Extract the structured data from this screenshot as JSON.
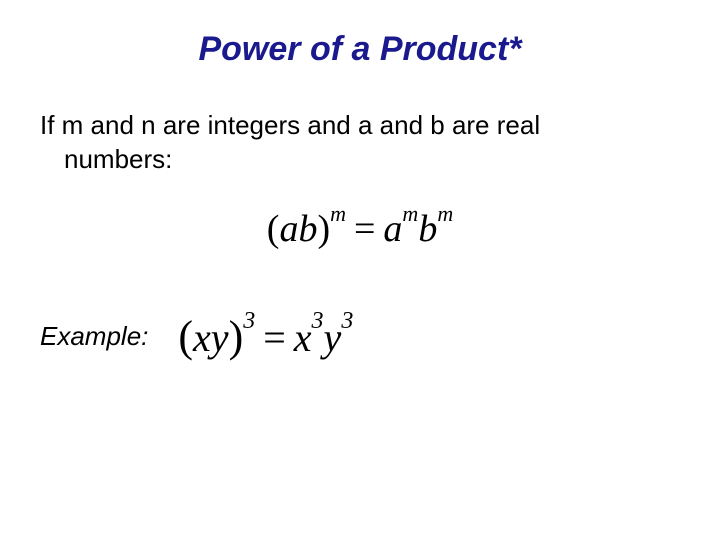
{
  "title": "Power of a Product*",
  "bodyText": {
    "line1": "If m and n are integers and a  and b are real",
    "line2": "numbers:"
  },
  "formulaMain": {
    "leftParen": "(",
    "base1": "ab",
    "rightParen": ")",
    "exp1": "m",
    "equals": "=",
    "term2base": "a",
    "term2exp": "m",
    "term3base": "b",
    "term3exp": "m"
  },
  "exampleLabel": "Example:",
  "formulaExample": {
    "leftParen": "(",
    "base1": "xy",
    "rightParen": ")",
    "exp1": "3",
    "equals": "=",
    "term2base": "x",
    "term2exp": "3",
    "term3base": "y",
    "term3exp": "3"
  },
  "colors": {
    "titleColor": "#1a1a8e",
    "textColor": "#000000",
    "background": "#ffffff"
  },
  "typography": {
    "titleFontSize": 34,
    "bodyFontSize": 26,
    "formulaMainFontSize": 38,
    "formulaExampleFontSize": 40,
    "titleFontFamily": "Arial",
    "formulaFontFamily": "Times New Roman"
  }
}
